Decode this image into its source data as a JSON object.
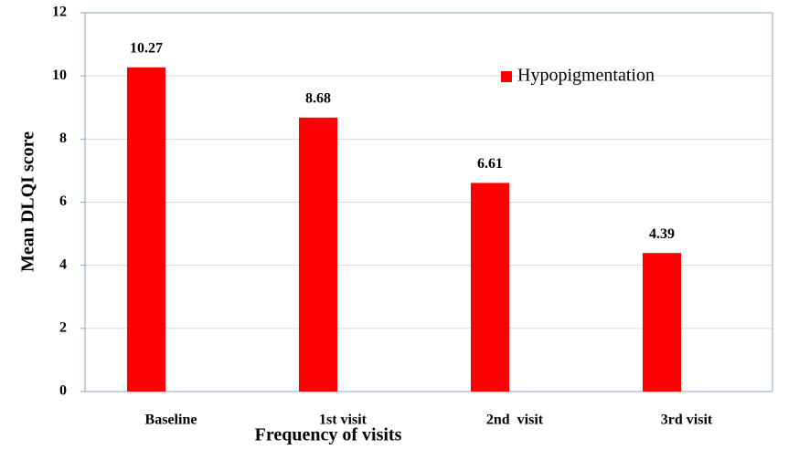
{
  "chart_data": {
    "type": "bar",
    "x_label": "Frequency of visits",
    "y_label": "Mean DLQI score",
    "categories": [
      "Baseline",
      "1st visit",
      "2nd  visit",
      "3rd visit"
    ],
    "series": [
      {
        "name": "Hypopigmentation",
        "color": "#ff0000",
        "values": [
          10.27,
          8.68,
          6.61,
          4.39
        ]
      }
    ],
    "ylim": [
      0,
      12
    ],
    "yticks": [
      0,
      2,
      4,
      6,
      8,
      10,
      12
    ],
    "grid": true,
    "legend": "upper right"
  }
}
